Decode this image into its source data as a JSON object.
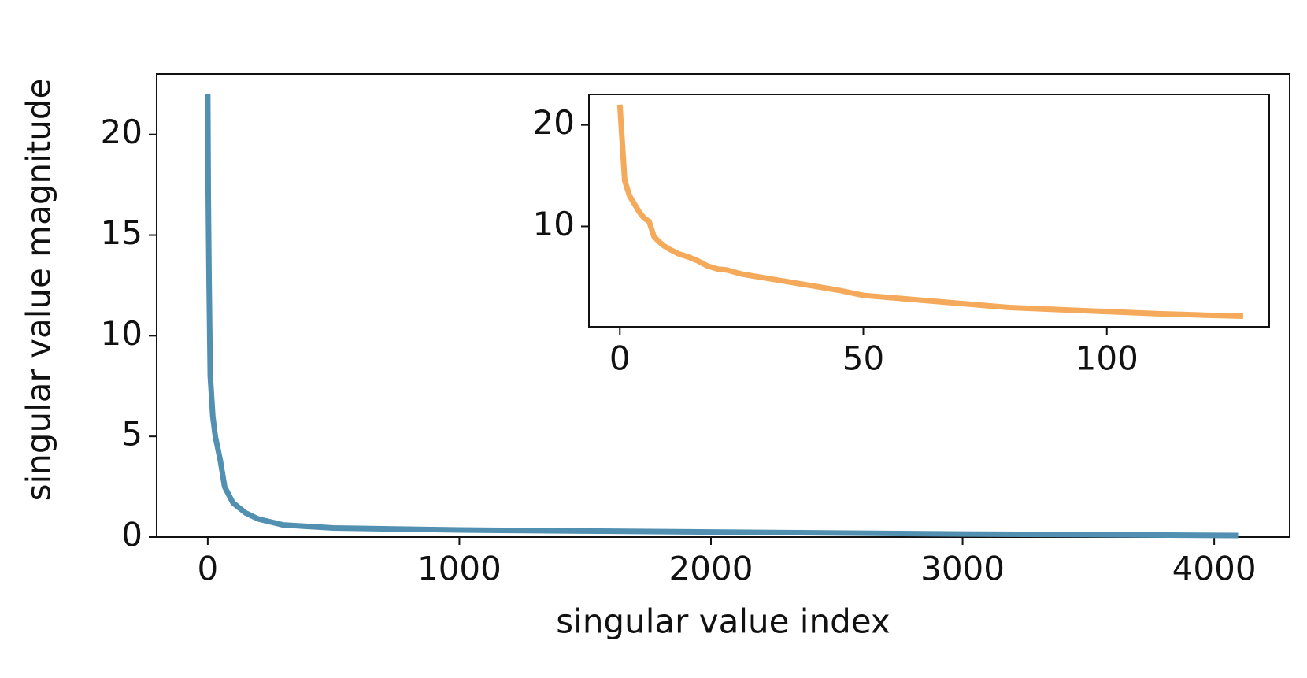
{
  "chart_data": [
    {
      "type": "line",
      "xlabel": "singular value index",
      "ylabel": "singular value magnitude",
      "x": [
        0,
        2,
        5,
        10,
        20,
        30,
        50,
        67,
        100,
        150,
        200,
        300,
        500,
        1000,
        1500,
        2000,
        2500,
        3000,
        3500,
        4095
      ],
      "series": [
        {
          "color": "#5190b0",
          "values": [
            22,
            17,
            13,
            8,
            6,
            5,
            3.8,
            2.5,
            1.7,
            1.2,
            0.9,
            0.6,
            0.45,
            0.35,
            0.3,
            0.25,
            0.2,
            0.15,
            0.12,
            0.08
          ]
        }
      ],
      "xlim": [
        -203,
        4300
      ],
      "ylim": [
        0,
        23
      ],
      "xticks": [
        0,
        1000,
        2000,
        3000,
        4000
      ],
      "yticks": [
        0,
        5,
        10,
        15,
        20
      ]
    },
    {
      "type": "line",
      "x": [
        0,
        1,
        2,
        3,
        4,
        5,
        6,
        7,
        8,
        9,
        10,
        12,
        14,
        16,
        18,
        20,
        22,
        25,
        30,
        35,
        40,
        45,
        50,
        60,
        70,
        80,
        90,
        100,
        110,
        120,
        128
      ],
      "series": [
        {
          "color": "#f5aa5b",
          "values": [
            22,
            14.5,
            13,
            12.2,
            11.4,
            10.8,
            10.5,
            9,
            8.5,
            8.1,
            7.8,
            7.3,
            7.0,
            6.6,
            6.1,
            5.8,
            5.7,
            5.3,
            4.9,
            4.5,
            4.1,
            3.7,
            3.2,
            2.8,
            2.4,
            2.0,
            1.8,
            1.6,
            1.4,
            1.25,
            1.15
          ]
        }
      ],
      "xlim": [
        -6.35,
        133.35
      ],
      "ylim": [
        0.1,
        23
      ],
      "xticks": [
        0,
        50,
        100
      ],
      "yticks": [
        10,
        20
      ]
    }
  ]
}
